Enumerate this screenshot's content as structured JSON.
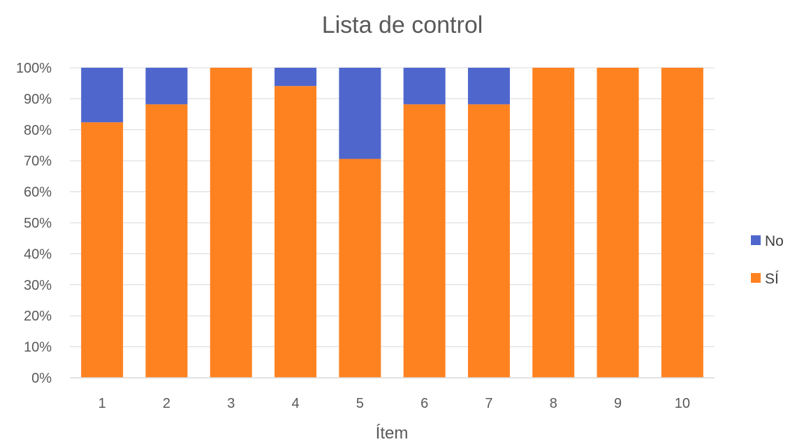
{
  "chart_data": {
    "type": "bar",
    "stacked": true,
    "percent": true,
    "title": "Lista de control",
    "xlabel": "Ítem",
    "ylabel": "",
    "categories": [
      "1",
      "2",
      "3",
      "4",
      "5",
      "6",
      "7",
      "8",
      "9",
      "10"
    ],
    "series": [
      {
        "name": "SÍ",
        "color": "#FF8221",
        "values": [
          82.4,
          88.2,
          100,
          94.1,
          70.6,
          88.2,
          88.2,
          100,
          100,
          100
        ]
      },
      {
        "name": "No",
        "color": "#4F67CD",
        "values": [
          17.6,
          11.8,
          0,
          5.9,
          29.4,
          11.8,
          11.8,
          0,
          0,
          0
        ]
      }
    ],
    "yticks": [
      "0%",
      "10%",
      "20%",
      "30%",
      "40%",
      "50%",
      "60%",
      "70%",
      "80%",
      "90%",
      "100%"
    ],
    "ylim": [
      0,
      100
    ],
    "grid": true,
    "legend": {
      "position": "right",
      "order": [
        "No",
        "SÍ"
      ]
    }
  }
}
